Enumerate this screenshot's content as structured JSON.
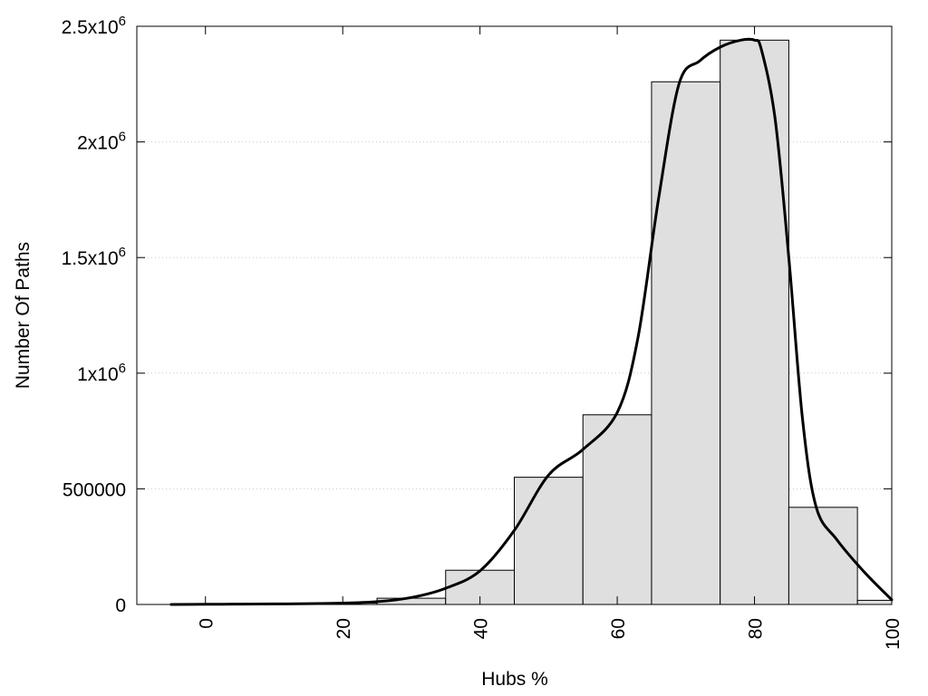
{
  "chart_data": {
    "type": "bar",
    "title": "",
    "xlabel": "Hubs %",
    "ylabel": "Number Of Paths",
    "xlim": [
      -10,
      100
    ],
    "ylim": [
      0,
      2500000
    ],
    "x_ticks": [
      0,
      20,
      40,
      60,
      80,
      100
    ],
    "x_tick_labels": [
      "0",
      "20",
      "40",
      "60",
      "80",
      "100"
    ],
    "y_ticks": [
      {
        "value": 0,
        "label": "0",
        "exp": ""
      },
      {
        "value": 500000,
        "label": "500000",
        "exp": ""
      },
      {
        "value": 1000000,
        "label": "1x10",
        "exp": "6"
      },
      {
        "value": 1500000,
        "label": "1.5x10",
        "exp": "6"
      },
      {
        "value": 2000000,
        "label": "2x10",
        "exp": "6"
      },
      {
        "value": 2500000,
        "label": "2.5x10",
        "exp": "6"
      }
    ],
    "grid": "horizontal-dotted",
    "bin_width": 10,
    "bins": [
      {
        "center": 0,
        "value": 2000
      },
      {
        "center": 10,
        "value": 2000
      },
      {
        "center": 20,
        "value": 6000
      },
      {
        "center": 30,
        "value": 27000
      },
      {
        "center": 40,
        "value": 148000
      },
      {
        "center": 50,
        "value": 550000
      },
      {
        "center": 60,
        "value": 820000
      },
      {
        "center": 70,
        "value": 2260000
      },
      {
        "center": 80,
        "value": 2440000
      },
      {
        "center": 90,
        "value": 420000
      },
      {
        "center": 100,
        "value": 18000
      }
    ],
    "series": [
      {
        "type": "line",
        "x": [
          -5,
          0,
          5,
          10,
          15,
          20,
          25,
          30,
          35,
          40,
          45,
          50,
          55,
          60,
          63,
          66,
          69,
          72,
          75,
          78,
          80,
          81,
          83,
          85,
          87,
          89,
          92,
          96,
          100
        ],
        "values": [
          0,
          1000,
          1500,
          2500,
          3500,
          6000,
          12000,
          30000,
          70000,
          145000,
          320000,
          560000,
          670000,
          830000,
          1150000,
          1750000,
          2250000,
          2350000,
          2410000,
          2440000,
          2440000,
          2400000,
          2100000,
          1500000,
          800000,
          420000,
          280000,
          140000,
          20000
        ]
      }
    ]
  }
}
